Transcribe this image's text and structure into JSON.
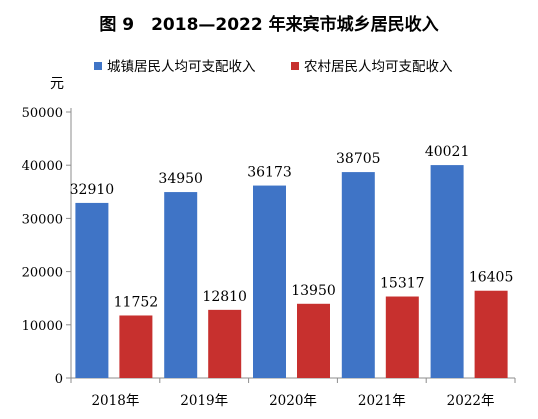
{
  "figure": {
    "title": "图 9　2018—2022 年来宾市城乡居民收入"
  },
  "colors": {
    "urban": "#3f74c6",
    "rural": "#c7302e",
    "axis": "#8c8c8c",
    "text": "#000000"
  },
  "chart_data": {
    "type": "bar",
    "title": "图 9　2018—2022 年来宾市城乡居民收入",
    "ylabel": "元",
    "xlabel": "",
    "categories": [
      "2018年",
      "2019年",
      "2020年",
      "2021年",
      "2022年"
    ],
    "ylim": [
      0,
      50000
    ],
    "yticks": [
      "0",
      "10000",
      "20000",
      "30000",
      "40000",
      "50000"
    ],
    "grid": false,
    "legend_position": "top",
    "series": [
      {
        "name": "城镇居民人均可支配收入",
        "color": "#3f74c6",
        "values": [
          32910,
          34950,
          36173,
          38705,
          40021
        ],
        "labels": [
          "32910",
          "34950",
          "36173",
          "38705",
          "40021"
        ]
      },
      {
        "name": "农村居民人均可支配收入",
        "color": "#c7302e",
        "values": [
          11752,
          12810,
          13950,
          15317,
          16405
        ],
        "labels": [
          "11752",
          "12810",
          "13950",
          "15317",
          "16405"
        ]
      }
    ]
  }
}
